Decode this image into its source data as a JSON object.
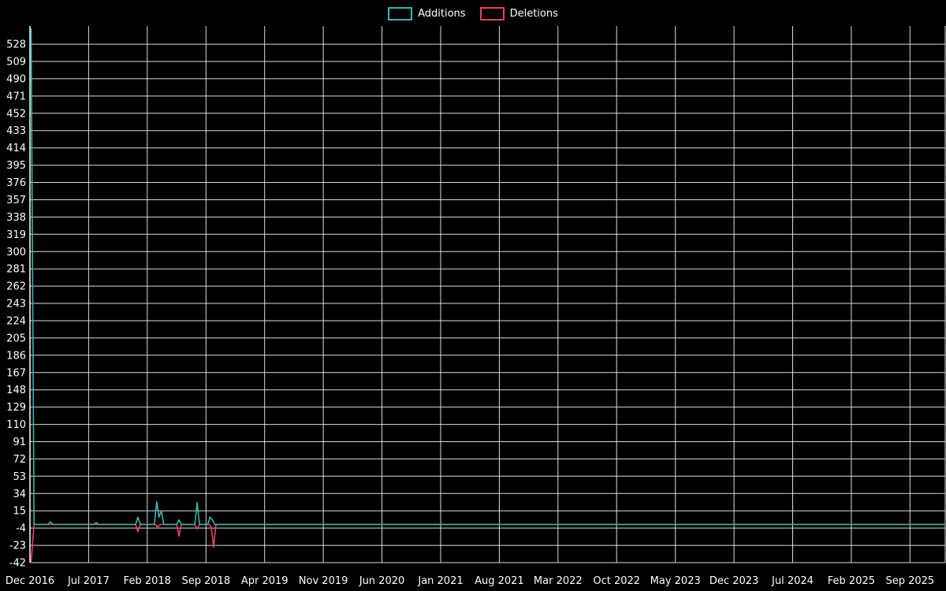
{
  "legend": {
    "items": [
      {
        "label": "Additions",
        "color": "#3fb3ae"
      },
      {
        "label": "Deletions",
        "color": "#e8435c"
      }
    ]
  },
  "colors": {
    "background": "#000000",
    "grid": "#f2f2f2",
    "axis": "#ffffff",
    "text": "#ffffff",
    "additions": "#3fb3ae",
    "deletions": "#e8435c"
  },
  "chart_data": {
    "type": "line",
    "title": "",
    "xlabel": "",
    "ylabel": "",
    "legend_position": "top-center",
    "grid": true,
    "x_tick_labels": [
      "Dec 2016",
      "Jul 2017",
      "Feb 2018",
      "Sep 2018",
      "Apr 2019",
      "Nov 2019",
      "Jun 2020",
      "Jan 2021",
      "Aug 2021",
      "Mar 2022",
      "Oct 2022",
      "May 2023",
      "Dec 2023",
      "Jul 2024",
      "Feb 2025",
      "Sep 2025"
    ],
    "y_ticks": [
      528,
      509,
      490,
      471,
      452,
      433,
      414,
      395,
      376,
      357,
      338,
      319,
      300,
      281,
      262,
      243,
      224,
      205,
      186,
      167,
      148,
      129,
      110,
      91,
      72,
      53,
      34,
      15,
      -4,
      -23,
      -42
    ],
    "xlim_tick_units": [
      0,
      15.6
    ],
    "ylim": [
      -42,
      548
    ],
    "x_unit_note": "x values are in tick units; 1 unit = 7 months starting Dec 2016",
    "series": [
      {
        "name": "Additions",
        "color": "#3fb3ae",
        "points": [
          [
            0.02,
            545
          ],
          [
            0.07,
            0
          ],
          [
            0.31,
            0
          ],
          [
            0.35,
            3
          ],
          [
            0.39,
            0
          ],
          [
            1.09,
            0
          ],
          [
            1.13,
            2
          ],
          [
            1.17,
            0
          ],
          [
            1.8,
            0
          ],
          [
            1.84,
            8
          ],
          [
            1.88,
            0
          ],
          [
            2.12,
            0
          ],
          [
            2.16,
            25
          ],
          [
            2.2,
            8
          ],
          [
            2.24,
            15
          ],
          [
            2.28,
            0
          ],
          [
            2.5,
            0
          ],
          [
            2.54,
            5
          ],
          [
            2.58,
            0
          ],
          [
            2.81,
            0
          ],
          [
            2.85,
            24
          ],
          [
            2.89,
            0
          ],
          [
            3.03,
            0
          ],
          [
            3.07,
            8
          ],
          [
            3.11,
            5
          ],
          [
            3.15,
            0
          ],
          [
            15.6,
            0
          ]
        ]
      },
      {
        "name": "Deletions",
        "color": "#e8435c",
        "points": [
          [
            0.02,
            -42
          ],
          [
            0.07,
            0
          ],
          [
            1.8,
            0
          ],
          [
            1.84,
            -8
          ],
          [
            1.88,
            0
          ],
          [
            2.14,
            0
          ],
          [
            2.18,
            -3
          ],
          [
            2.22,
            0
          ],
          [
            2.5,
            0
          ],
          [
            2.54,
            -13
          ],
          [
            2.58,
            0
          ],
          [
            2.81,
            0
          ],
          [
            2.85,
            -5
          ],
          [
            2.89,
            0
          ],
          [
            3.05,
            0
          ],
          [
            3.09,
            -3
          ],
          [
            3.13,
            -25
          ],
          [
            3.17,
            0
          ],
          [
            15.6,
            0
          ]
        ]
      }
    ]
  }
}
